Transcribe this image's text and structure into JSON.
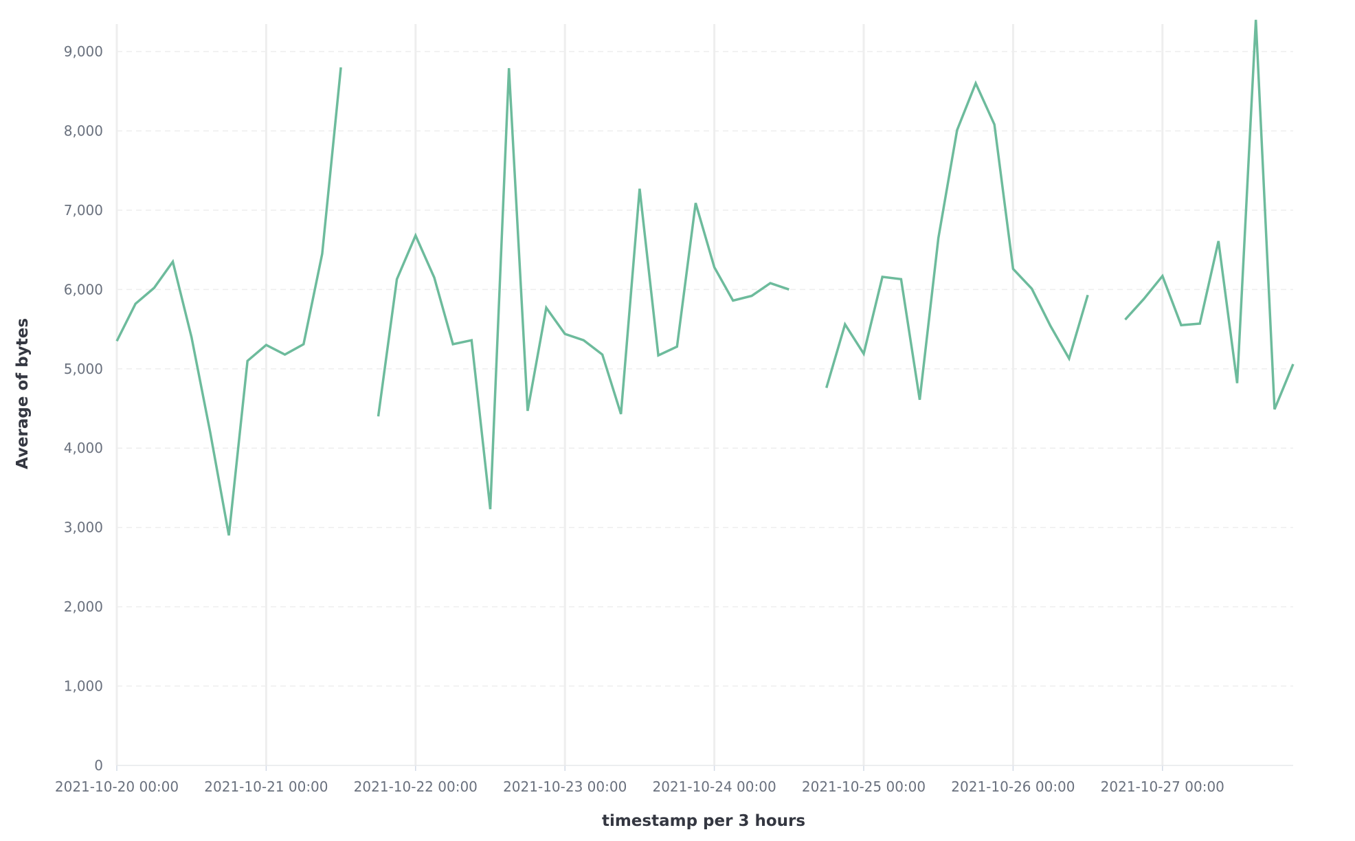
{
  "chart_data": {
    "type": "line",
    "title": "",
    "xlabel": "timestamp per 3 hours",
    "ylabel": "Average of bytes",
    "ylim": [
      0,
      9400
    ],
    "x_interval_hours": 3,
    "grid": {
      "vertical": true,
      "horizontal_dashed": true
    },
    "colors": {
      "line": "#6dbb9c",
      "grid_solid": "#eeeeee",
      "grid_dashed": "#eeeeee",
      "axis_text": "#69707d",
      "title_text": "#343741"
    },
    "x_tick_labels": [
      "2021-10-20 00:00",
      "2021-10-21 00:00",
      "2021-10-22 00:00",
      "2021-10-23 00:00",
      "2021-10-24 00:00",
      "2021-10-25 00:00",
      "2021-10-26 00:00",
      "2021-10-27 00:00"
    ],
    "y_ticks": [
      0,
      1000,
      2000,
      3000,
      4000,
      5000,
      6000,
      7000,
      8000,
      9000
    ],
    "y_tick_labels": [
      "0",
      "1,000",
      "2,000",
      "3,000",
      "4,000",
      "5,000",
      "6,000",
      "7,000",
      "8,000",
      "9,000"
    ],
    "series": [
      {
        "x": [
          "2021-10-20 00:00",
          "2021-10-20 03:00",
          "2021-10-20 06:00",
          "2021-10-20 09:00",
          "2021-10-20 12:00",
          "2021-10-20 15:00",
          "2021-10-20 18:00",
          "2021-10-20 21:00",
          "2021-10-21 00:00",
          "2021-10-21 03:00",
          "2021-10-21 06:00",
          "2021-10-21 09:00",
          "2021-10-21 12:00",
          "2021-10-21 15:00",
          "2021-10-21 18:00",
          "2021-10-21 21:00",
          "2021-10-22 00:00",
          "2021-10-22 03:00",
          "2021-10-22 06:00",
          "2021-10-22 09:00",
          "2021-10-22 12:00",
          "2021-10-22 15:00",
          "2021-10-22 18:00",
          "2021-10-22 21:00",
          "2021-10-23 00:00",
          "2021-10-23 03:00",
          "2021-10-23 06:00",
          "2021-10-23 09:00",
          "2021-10-23 12:00",
          "2021-10-23 15:00",
          "2021-10-23 18:00",
          "2021-10-23 21:00",
          "2021-10-24 00:00",
          "2021-10-24 03:00",
          "2021-10-24 06:00",
          "2021-10-24 09:00",
          "2021-10-24 12:00",
          "2021-10-24 15:00",
          "2021-10-24 18:00",
          "2021-10-24 21:00",
          "2021-10-25 00:00",
          "2021-10-25 03:00",
          "2021-10-25 06:00",
          "2021-10-25 09:00",
          "2021-10-25 12:00",
          "2021-10-25 15:00",
          "2021-10-25 18:00",
          "2021-10-25 21:00",
          "2021-10-26 00:00",
          "2021-10-26 03:00",
          "2021-10-26 06:00",
          "2021-10-26 09:00",
          "2021-10-26 12:00",
          "2021-10-26 15:00",
          "2021-10-26 18:00",
          "2021-10-26 21:00",
          "2021-10-27 00:00",
          "2021-10-27 03:00",
          "2021-10-27 06:00",
          "2021-10-27 09:00",
          "2021-10-27 12:00",
          "2021-10-27 15:00",
          "2021-10-27 18:00",
          "2021-10-27 21:00"
        ],
        "values": [
          5350,
          5820,
          6020,
          6350,
          5400,
          4200,
          2900,
          5100,
          5300,
          5180,
          5310,
          6450,
          8800,
          null,
          4400,
          6130,
          6680,
          6150,
          5310,
          5360,
          3230,
          8790,
          4470,
          5770,
          5440,
          5360,
          5180,
          4430,
          7270,
          5170,
          5280,
          7090,
          6280,
          5860,
          5920,
          6080,
          6000,
          null,
          4760,
          5560,
          5190,
          6160,
          6130,
          4610,
          6650,
          8010,
          8600,
          8080,
          6260,
          6010,
          5540,
          5130,
          5930,
          null,
          5620,
          5880,
          6170,
          5550,
          5570,
          6610,
          4820,
          9400,
          4490,
          5060
        ]
      }
    ]
  }
}
